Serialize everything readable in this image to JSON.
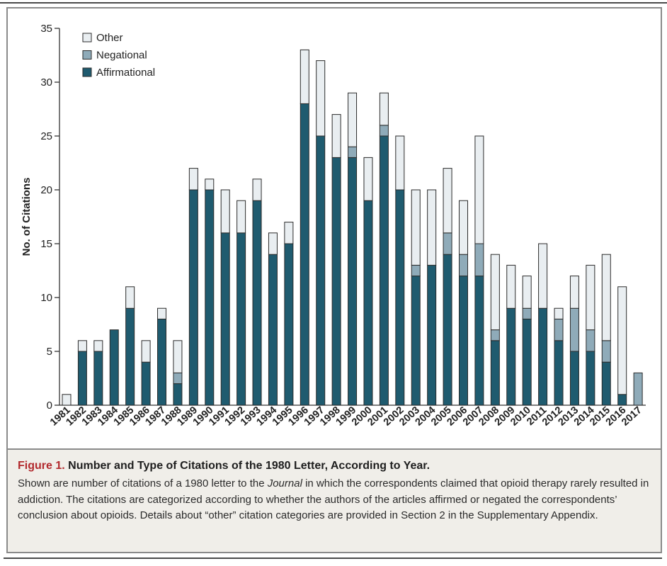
{
  "caption": {
    "figure_label": "Figure 1.",
    "body_pre": "Shown are number of citations of a 1980 letter to the ",
    "body_italic": "Journal",
    "body_post": " in which the correspondents claimed that opioid therapy rarely resulted in addiction. The citations are categorized according to whether the authors of the articles affirmed or negated the correspondents’ conclusion about opioids. Details about “other” citation categories are provided in Section 2 in the Supplementary Appendix."
  },
  "colors": {
    "figure_label": "#b22a2e",
    "caption_background": "#f0eee9",
    "bar_outline": "#2b2b2b"
  },
  "chart_data": {
    "type": "bar",
    "stacked": true,
    "title": "Number and Type of Citations of the 1980 Letter, According to Year.",
    "xlabel": "",
    "ylabel": "No. of Citations",
    "ylim": [
      0,
      35
    ],
    "yticks": [
      0,
      5,
      10,
      15,
      20,
      25,
      30,
      35
    ],
    "grid": false,
    "legend_position": "top-left",
    "categories": [
      "1981",
      "1982",
      "1983",
      "1984",
      "1985",
      "1986",
      "1987",
      "1988",
      "1989",
      "1990",
      "1991",
      "1992",
      "1993",
      "1994",
      "1995",
      "1996",
      "1997",
      "1998",
      "1999",
      "2000",
      "2001",
      "2002",
      "2003",
      "2004",
      "2005",
      "2006",
      "2007",
      "2008",
      "2009",
      "2010",
      "2011",
      "2012",
      "2013",
      "2014",
      "2015",
      "2016",
      "2017"
    ],
    "series": [
      {
        "name": "Affirmational",
        "color": "#1f5b6f",
        "values": [
          0,
          5,
          5,
          7,
          9,
          4,
          8,
          2,
          20,
          20,
          16,
          16,
          19,
          14,
          15,
          28,
          25,
          23,
          23,
          19,
          25,
          20,
          12,
          13,
          14,
          12,
          12,
          6,
          9,
          8,
          9,
          6,
          5,
          5,
          4,
          1,
          0
        ]
      },
      {
        "name": "Negational",
        "color": "#8fabb9",
        "values": [
          0,
          0,
          0,
          0,
          0,
          0,
          0,
          1,
          0,
          0,
          0,
          0,
          0,
          0,
          0,
          0,
          0,
          0,
          1,
          0,
          1,
          0,
          1,
          0,
          2,
          2,
          3,
          1,
          0,
          1,
          0,
          2,
          4,
          2,
          2,
          0,
          3
        ]
      },
      {
        "name": "Other",
        "color": "#e9eef1",
        "values": [
          1,
          1,
          1,
          0,
          2,
          2,
          1,
          3,
          2,
          1,
          4,
          3,
          2,
          2,
          2,
          5,
          7,
          4,
          5,
          4,
          3,
          5,
          7,
          7,
          6,
          5,
          10,
          7,
          4,
          3,
          6,
          1,
          3,
          6,
          8,
          10,
          0
        ]
      }
    ]
  }
}
